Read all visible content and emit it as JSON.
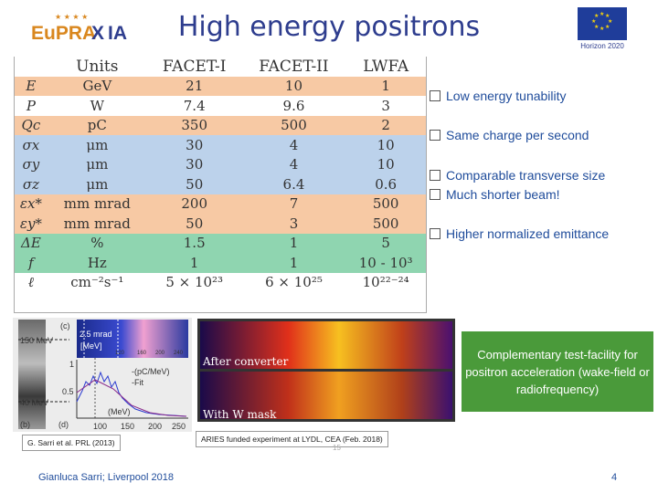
{
  "header": {
    "logo_text": "EuPRAXIA",
    "title": "High energy positrons",
    "eu_caption": "Horizon 2020"
  },
  "table": {
    "columns": [
      "",
      "Units",
      "FACET-I",
      "FACET-II",
      "LWFA"
    ],
    "rows": [
      [
        "E",
        "GeV",
        "21",
        "10",
        "1"
      ],
      [
        "P",
        "W",
        "7.4",
        "9.6",
        "3"
      ],
      [
        "Qc",
        "pC",
        "350",
        "500",
        "2"
      ],
      [
        "σx",
        "μm",
        "30",
        "4",
        "10"
      ],
      [
        "σy",
        "μm",
        "30",
        "4",
        "10"
      ],
      [
        "σz",
        "μm",
        "50",
        "6.4",
        "0.6"
      ],
      [
        "εx*",
        "mm mrad",
        "200",
        "7",
        "500"
      ],
      [
        "εy*",
        "mm mrad",
        "50",
        "3",
        "500"
      ],
      [
        "ΔE",
        "%",
        "1.5",
        "1",
        "5"
      ],
      [
        "f",
        "Hz",
        "1",
        "1",
        "10 - 10³"
      ],
      [
        "ℓ",
        "cm⁻²s⁻¹",
        "5 × 10²³",
        "6 × 10²⁵",
        "10²²⁻²⁴"
      ]
    ]
  },
  "bullets": [
    "Low energy tunability",
    "Same charge per second",
    "Comparable transverse size",
    "Much shorter beam!",
    "Higher normalized emittance"
  ],
  "left_figure": {
    "label_c": "(c)",
    "label_b": "(b)",
    "label_d": "(d)",
    "mev_top": "150 MeV",
    "mev_bottom": "40 MeV",
    "inset_mrad": "2.5 mrad",
    "inset_mev": "[MeV]",
    "inset_ticks": [
      "120",
      "160",
      "200",
      "240"
    ],
    "legend_1": "-(pC/MeV)",
    "legend_2": "-Fit",
    "y_tick_1": "1",
    "y_tick_05": "0.5",
    "x_unit": "(MeV)",
    "x_ticks": [
      "100",
      "150",
      "200",
      "250"
    ],
    "caption": "G. Sarri et al. PRL (2013)"
  },
  "right_figure": {
    "label_top": "After converter",
    "label_bottom": "With W mask",
    "caption": "ARIES funded experiment at LYDL, CEA (Feb. 2018)"
  },
  "green_box": "Complementary test-facility for positron acceleration (wake-field or radiofrequency)",
  "footer": {
    "author": "Gianluca Sarri; Liverpool 2018",
    "page": "4",
    "faint": "15"
  }
}
